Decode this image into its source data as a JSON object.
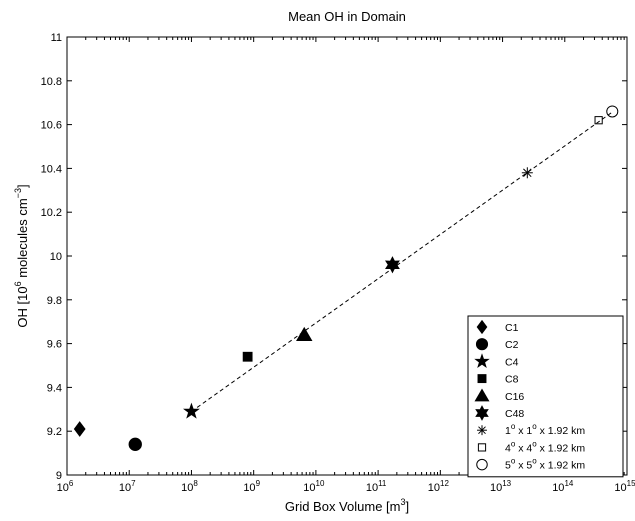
{
  "chart_data": {
    "type": "scatter",
    "title": "Mean OH in Domain",
    "xlabel": "Grid Box Volume [m",
    "xlabel_sup": "3",
    "xlabel_end": "]",
    "ylabel": "OH [10",
    "ylabel_sup1": "6",
    "ylabel_mid": " molecules cm",
    "ylabel_sup2": "−3",
    "ylabel_end": "]",
    "x_scale": "log",
    "xlim": [
      1000000.0,
      1000000000000000.0
    ],
    "ylim": [
      9.0,
      11.0
    ],
    "grid": false,
    "legend_position": "bottom-right",
    "x_ticks": [
      {
        "value": 1000000.0,
        "base": "10",
        "exp": "6"
      },
      {
        "value": 10000000.0,
        "base": "10",
        "exp": "7"
      },
      {
        "value": 100000000.0,
        "base": "10",
        "exp": "8"
      },
      {
        "value": 1000000000.0,
        "base": "10",
        "exp": "9"
      },
      {
        "value": 10000000000.0,
        "base": "10",
        "exp": "10"
      },
      {
        "value": 100000000000.0,
        "base": "10",
        "exp": "11"
      },
      {
        "value": 1000000000000.0,
        "base": "10",
        "exp": "12"
      },
      {
        "value": 10000000000000.0,
        "base": "10",
        "exp": "13"
      },
      {
        "value": 100000000000000.0,
        "base": "10",
        "exp": "14"
      },
      {
        "value": 1000000000000000.0,
        "base": "10",
        "exp": "15"
      }
    ],
    "y_ticks": [
      "9",
      "9.2",
      "9.4",
      "9.6",
      "9.8",
      "10",
      "10.2",
      "10.4",
      "10.6",
      "10.8",
      "11"
    ],
    "fit_line": {
      "style": "dashed",
      "x": [
        100000000.0,
        600000000000000.0
      ],
      "y": [
        9.29,
        10.66
      ]
    },
    "series": [
      {
        "name": "C1",
        "marker": "diamond",
        "fill": "filled",
        "x": 1600000.0,
        "y": 9.21
      },
      {
        "name": "C2",
        "marker": "circle",
        "fill": "filled",
        "x": 12500000.0,
        "y": 9.14
      },
      {
        "name": "C4",
        "marker": "star",
        "fill": "filled",
        "x": 100000000.0,
        "y": 9.29
      },
      {
        "name": "C8",
        "marker": "square",
        "fill": "filled",
        "x": 800000000.0,
        "y": 9.54
      },
      {
        "name": "C16",
        "marker": "triangle",
        "fill": "filled",
        "x": 6500000000.0,
        "y": 9.64
      },
      {
        "name": "C48",
        "marker": "hexagram",
        "fill": "filled",
        "x": 170000000000.0,
        "y": 9.96
      },
      {
        "name": "1° x 1° x 1.92 km",
        "label_parts": [
          "1",
          "o",
          " x 1",
          "o",
          " x 1.92 km"
        ],
        "marker": "asterisk",
        "fill": "none",
        "x": 25000000000000.0,
        "y": 10.38
      },
      {
        "name": "4° x 4° x 1.92 km",
        "label_parts": [
          "4",
          "o",
          " x 4",
          "o",
          " x 1.92 km"
        ],
        "marker": "square",
        "fill": "none",
        "x": 350000000000000.0,
        "y": 10.62
      },
      {
        "name": "5° x 5° x 1.92 km",
        "label_parts": [
          "5",
          "o",
          " x 5",
          "o",
          " x 1.92 km"
        ],
        "marker": "circle",
        "fill": "none",
        "x": 580000000000000.0,
        "y": 10.66
      }
    ]
  }
}
